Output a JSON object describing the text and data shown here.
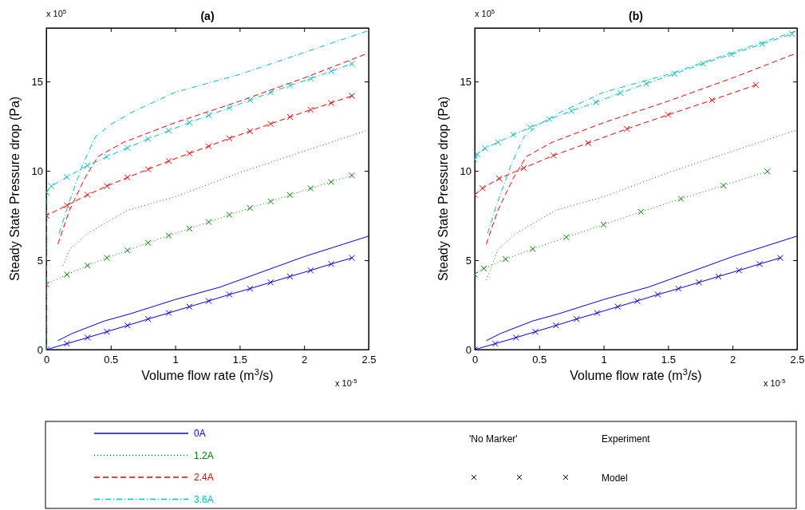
{
  "chart_data": [
    {
      "type": "line",
      "title": "(a)",
      "xlabel": "Volume flow rate (m$^{3}$/s)",
      "ylabel": "Steady State Pressure drop (Pa)",
      "xlim": [
        0,
        2.5
      ],
      "ylim": [
        0,
        18
      ],
      "xticks": [
        0,
        0.5,
        1,
        1.5,
        2,
        2.5
      ],
      "yticks": [
        0,
        5,
        10,
        15
      ],
      "grid": false,
      "legend": "bottom",
      "annotations": [
        "x 10$^{5}$",
        "x 10$^{-5}$",
        "'No Marker'",
        "Experiment",
        "Model"
      ],
      "series": [
        {
          "name": "0A",
          "color": "#0000ff",
          "line_style": "solid",
          "marker": "none",
          "x": [
            0.09,
            0.2,
            0.45,
            0.65,
            1.0,
            1.35,
            2.0,
            2.5
          ],
          "values": [
            0.5,
            0.9,
            1.6,
            2.0,
            2.8,
            3.5,
            5.2,
            6.35
          ]
        },
        {
          "name": "1.2A",
          "color": "#008000",
          "line_style": "dotted",
          "marker": "none",
          "x": [
            0.13,
            0.18,
            0.32,
            0.63,
            1.0,
            1.5,
            2.5
          ],
          "values": [
            4.7,
            5.6,
            6.5,
            7.8,
            8.55,
            9.9,
            12.3
          ]
        },
        {
          "name": "2.4A",
          "color": "#ff0000",
          "line_style": "dashed",
          "marker": "none",
          "x": [
            0.09,
            0.18,
            0.3,
            0.4,
            0.6,
            1.0,
            1.5,
            2.0,
            2.5
          ],
          "values": [
            5.9,
            7.8,
            9.6,
            10.8,
            11.6,
            12.7,
            13.9,
            15.2,
            16.6
          ]
        },
        {
          "name": "3.6A",
          "color": "#00bfbf",
          "line_style": "dashdot",
          "marker": "none",
          "x": [
            0.1,
            0.17,
            0.28,
            0.38,
            0.5,
            0.67,
            1.0,
            1.5,
            2.5
          ],
          "values": [
            6.5,
            8.1,
            10.3,
            11.9,
            12.6,
            13.3,
            14.4,
            15.4,
            17.85
          ]
        },
        {
          "color": "#0000ff",
          "line_style": "solid",
          "marker": "cross",
          "x": [
            0,
            0.16,
            0.32,
            0.47,
            0.63,
            0.79,
            0.95,
            1.11,
            1.26,
            1.42,
            1.58,
            1.74,
            1.89,
            2.05,
            2.21,
            2.37
          ],
          "values": [
            0,
            0.33,
            0.67,
            1.0,
            1.35,
            1.71,
            2.05,
            2.4,
            2.72,
            3.08,
            3.41,
            3.76,
            4.09,
            4.43,
            4.79,
            5.13
          ]
        },
        {
          "color": "#008000",
          "line_style": "dotted",
          "marker": "cross",
          "x": [
            0,
            0,
            0.16,
            0.32,
            0.47,
            0.63,
            0.79,
            0.95,
            1.11,
            1.26,
            1.42,
            1.58,
            1.74,
            1.89,
            2.05,
            2.21,
            2.37
          ],
          "values": [
            0,
            3.65,
            4.2,
            4.7,
            5.13,
            5.55,
            5.98,
            6.38,
            6.77,
            7.14,
            7.54,
            7.92,
            8.29,
            8.65,
            9.02,
            9.38,
            9.75
          ]
        },
        {
          "color": "#ff0000",
          "line_style": "dashed",
          "marker": "cross",
          "x": [
            0,
            0,
            0.16,
            0.32,
            0.47,
            0.63,
            0.79,
            0.95,
            1.11,
            1.26,
            1.42,
            1.58,
            1.74,
            1.89,
            2.05,
            2.21,
            2.37
          ],
          "values": [
            0,
            7.5,
            8.07,
            8.66,
            9.15,
            9.63,
            10.09,
            10.55,
            10.98,
            11.38,
            11.82,
            12.22,
            12.63,
            13.02,
            13.42,
            13.8,
            14.2
          ]
        },
        {
          "color": "#00bfbf",
          "line_style": "dashdot",
          "marker": "cross",
          "x": [
            0,
            0,
            0.04,
            0.16,
            0.32,
            0.47,
            0.63,
            0.79,
            0.95,
            1.11,
            1.26,
            1.42,
            1.58,
            1.74,
            1.89,
            2.05,
            2.21,
            2.37
          ],
          "values": [
            0,
            8.8,
            9.15,
            9.66,
            10.3,
            10.79,
            11.29,
            11.79,
            12.25,
            12.7,
            13.11,
            13.53,
            13.96,
            14.39,
            14.78,
            15.16,
            15.58,
            16.0
          ]
        }
      ]
    },
    {
      "type": "line",
      "title": "(b)",
      "xlabel": "Volume flow rate (m$^{3}$/s)",
      "ylabel": "Steady State Pressure drop (Pa)",
      "xlim": [
        0,
        2.5
      ],
      "ylim": [
        0,
        18
      ],
      "xticks": [
        0,
        0.5,
        1,
        1.5,
        2,
        2.5
      ],
      "yticks": [
        0,
        5,
        10,
        15
      ],
      "grid": false,
      "annotations": [
        "x 10$^{5}$",
        "x 10$^{-5}$"
      ],
      "series": [
        {
          "color": "#0000ff",
          "line_style": "solid",
          "marker": "none",
          "x": [
            0.09,
            0.2,
            0.45,
            0.65,
            1.0,
            1.35,
            2.0,
            2.5
          ],
          "values": [
            0.5,
            0.9,
            1.6,
            2.0,
            2.8,
            3.5,
            5.2,
            6.35
          ]
        },
        {
          "color": "#008000",
          "line_style": "dotted",
          "marker": "none",
          "x": [
            0.09,
            0.18,
            0.32,
            0.63,
            1.0,
            1.5,
            2.5
          ],
          "values": [
            3.9,
            5.6,
            6.5,
            7.8,
            8.55,
            9.9,
            12.3
          ]
        },
        {
          "color": "#ff0000",
          "line_style": "dashed",
          "marker": "none",
          "x": [
            0.09,
            0.18,
            0.3,
            0.4,
            0.6,
            1.0,
            1.5,
            2.0,
            2.5
          ],
          "values": [
            5.9,
            7.8,
            9.6,
            10.8,
            11.6,
            12.7,
            13.9,
            15.2,
            16.6
          ]
        },
        {
          "color": "#00bfbf",
          "line_style": "dashdot",
          "marker": "none",
          "x": [
            0.1,
            0.17,
            0.28,
            0.38,
            0.5,
            0.67,
            1.0,
            1.5,
            2.5
          ],
          "values": [
            6.5,
            8.1,
            10.3,
            11.9,
            12.6,
            13.3,
            14.4,
            15.4,
            17.85
          ]
        },
        {
          "color": "#0000ff",
          "line_style": "solid",
          "marker": "cross",
          "x": [
            0,
            0.16,
            0.32,
            0.47,
            0.63,
            0.79,
            0.95,
            1.11,
            1.26,
            1.42,
            1.58,
            1.74,
            1.89,
            2.05,
            2.21,
            2.37
          ],
          "values": [
            0,
            0.33,
            0.67,
            1.0,
            1.35,
            1.71,
            2.05,
            2.4,
            2.72,
            3.08,
            3.41,
            3.76,
            4.09,
            4.43,
            4.79,
            5.13
          ]
        },
        {
          "color": "#008000",
          "line_style": "dotted",
          "marker": "cross",
          "x": [
            0,
            0.07,
            0.24,
            0.45,
            0.71,
            1.0,
            1.29,
            1.6,
            1.93,
            2.27
          ],
          "values": [
            4.2,
            4.54,
            5.06,
            5.63,
            6.29,
            6.99,
            7.71,
            8.44,
            9.18,
            9.97
          ]
        },
        {
          "color": "#ff0000",
          "line_style": "dashed",
          "marker": "cross",
          "x": [
            0,
            0.06,
            0.19,
            0.38,
            0.61,
            0.88,
            1.18,
            1.5,
            1.84,
            2.18
          ],
          "values": [
            8.66,
            9.03,
            9.57,
            10.16,
            10.86,
            11.56,
            12.35,
            13.14,
            13.96,
            14.81
          ]
        },
        {
          "color": "#00bfbf",
          "line_style": "dashdot",
          "marker": "cross",
          "x": [
            0,
            0.02,
            0.08,
            0.18,
            0.3,
            0.43,
            0.58,
            0.75,
            0.94,
            1.13,
            1.33,
            1.55,
            1.77,
            1.99,
            2.23,
            2.46
          ],
          "values": [
            10.64,
            10.94,
            11.26,
            11.6,
            12.02,
            12.43,
            12.89,
            13.35,
            13.84,
            14.36,
            14.88,
            15.43,
            16.0,
            16.52,
            17.1,
            17.66
          ]
        }
      ]
    }
  ]
}
